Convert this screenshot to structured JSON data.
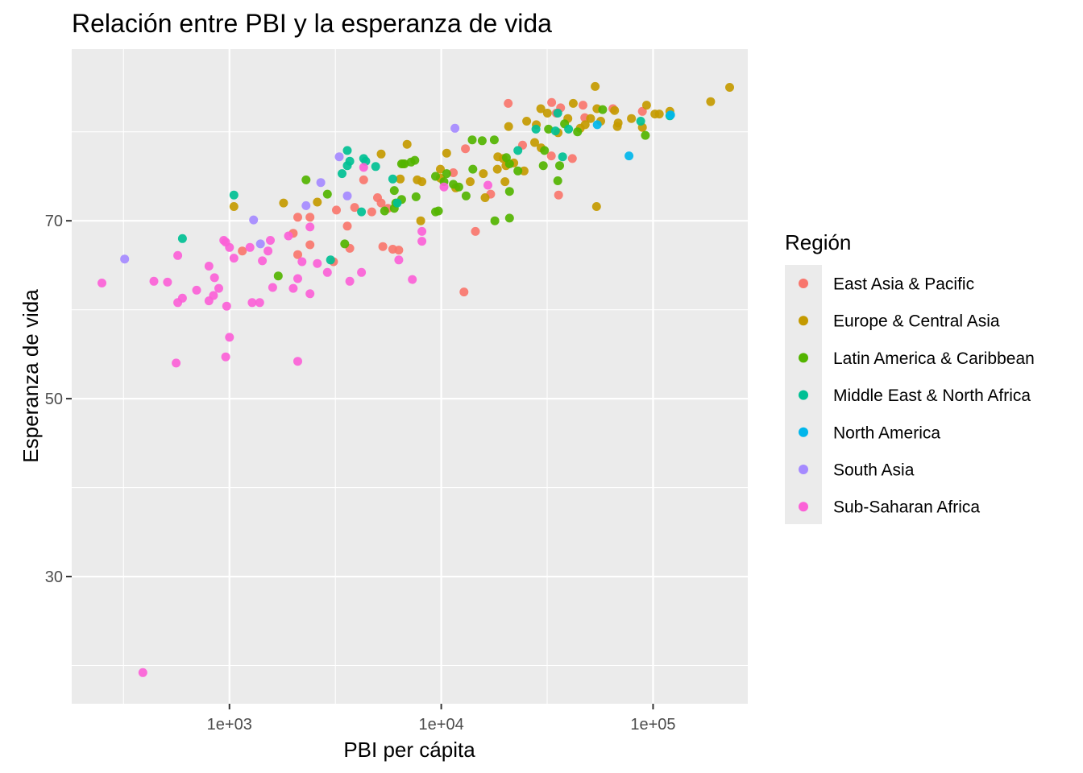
{
  "chart_data": {
    "type": "scatter",
    "title": "Relación entre  PBI y la esperanza de vida",
    "xlabel": "PBI per cápita",
    "ylabel": "Esperanza de vida",
    "x_scale": "log10",
    "xlim": [
      180,
      280000
    ],
    "ylim": [
      15.7,
      89.3
    ],
    "x_ticks": [
      {
        "value": 1000,
        "label": "1e+03"
      },
      {
        "value": 10000,
        "label": "1e+04"
      },
      {
        "value": 100000,
        "label": "1e+05"
      }
    ],
    "y_ticks": [
      {
        "value": 30,
        "label": "30"
      },
      {
        "value": 50,
        "label": "50"
      },
      {
        "value": 70,
        "label": "70"
      }
    ],
    "grid": true,
    "legend": {
      "title": "Región",
      "position": "right"
    },
    "series": [
      {
        "name": "East Asia & Pacific",
        "color": "#F8766D",
        "points": [
          [
            20700,
            83.2
          ],
          [
            33200,
            83.3
          ],
          [
            36600,
            82.7
          ],
          [
            46700,
            83.0
          ],
          [
            47600,
            81.6
          ],
          [
            64600,
            82.6
          ],
          [
            89000,
            82.3
          ],
          [
            34900,
            82.1
          ],
          [
            24200,
            78.5
          ],
          [
            13000,
            78.1
          ],
          [
            33100,
            77.3
          ],
          [
            41600,
            77.0
          ],
          [
            11400,
            75.4
          ],
          [
            17100,
            73.0
          ],
          [
            35800,
            72.9
          ],
          [
            4300,
            74.6
          ],
          [
            5000,
            72.6
          ],
          [
            5200,
            72.0
          ],
          [
            5600,
            71.4
          ],
          [
            4700,
            71.0
          ],
          [
            3900,
            71.5
          ],
          [
            3200,
            71.2
          ],
          [
            2100,
            70.4
          ],
          [
            2400,
            70.4
          ],
          [
            2000,
            68.6
          ],
          [
            3600,
            69.4
          ],
          [
            2100,
            66.2
          ],
          [
            2400,
            67.3
          ],
          [
            3700,
            66.9
          ],
          [
            5300,
            67.1
          ],
          [
            5900,
            66.8
          ],
          [
            6300,
            66.7
          ],
          [
            3100,
            65.4
          ],
          [
            14500,
            68.8
          ],
          [
            12800,
            62.0
          ],
          [
            1150,
            66.6
          ]
        ]
      },
      {
        "name": "Europe & Central Asia",
        "color": "#C49A00",
        "points": [
          [
            53300,
            85.1
          ],
          [
            230000,
            85.0
          ],
          [
            93200,
            83.0
          ],
          [
            187000,
            83.4
          ],
          [
            54300,
            82.6
          ],
          [
            65800,
            82.4
          ],
          [
            120000,
            82.3
          ],
          [
            102000,
            82.0
          ],
          [
            107000,
            82.0
          ],
          [
            79000,
            81.5
          ],
          [
            29500,
            82.6
          ],
          [
            42000,
            83.2
          ],
          [
            31700,
            82.1
          ],
          [
            39600,
            81.5
          ],
          [
            50700,
            81.5
          ],
          [
            56600,
            81.2
          ],
          [
            47800,
            80.8
          ],
          [
            67800,
            80.6
          ],
          [
            68400,
            81.0
          ],
          [
            20800,
            80.6
          ],
          [
            28100,
            80.8
          ],
          [
            25300,
            81.2
          ],
          [
            89000,
            80.5
          ],
          [
            45300,
            80.4
          ],
          [
            35600,
            79.9
          ],
          [
            29600,
            78.2
          ],
          [
            27600,
            78.8
          ],
          [
            18500,
            77.2
          ],
          [
            19600,
            77.0
          ],
          [
            22000,
            76.5
          ],
          [
            20200,
            76.2
          ],
          [
            15800,
            75.3
          ],
          [
            18400,
            75.8
          ],
          [
            24600,
            75.6
          ],
          [
            9900,
            75.8
          ],
          [
            10600,
            77.6
          ],
          [
            6900,
            78.6
          ],
          [
            5200,
            77.5
          ],
          [
            6600,
            76.4
          ],
          [
            6400,
            74.7
          ],
          [
            7700,
            74.6
          ],
          [
            8100,
            74.4
          ],
          [
            9900,
            74.8
          ],
          [
            13700,
            74.4
          ],
          [
            16100,
            72.6
          ],
          [
            20000,
            74.4
          ],
          [
            2600,
            72.1
          ],
          [
            1800,
            72.0
          ],
          [
            1050,
            71.6
          ],
          [
            8000,
            70.0
          ],
          [
            54100,
            71.6
          ],
          [
            11700,
            73.7
          ]
        ]
      },
      {
        "name": "Latin America & Caribbean",
        "color": "#53B400",
        "points": [
          [
            92000,
            79.6
          ],
          [
            57800,
            82.5
          ],
          [
            38200,
            80.9
          ],
          [
            44000,
            80.0
          ],
          [
            32100,
            80.3
          ],
          [
            30700,
            77.9
          ],
          [
            30300,
            76.2
          ],
          [
            36200,
            76.2
          ],
          [
            23000,
            75.6
          ],
          [
            20300,
            77.1
          ],
          [
            21000,
            76.4
          ],
          [
            14000,
            79.1
          ],
          [
            15600,
            79.0
          ],
          [
            17800,
            79.1
          ],
          [
            9400,
            75.0
          ],
          [
            10300,
            74.4
          ],
          [
            11400,
            74.1
          ],
          [
            12100,
            73.8
          ],
          [
            10600,
            75.3
          ],
          [
            14100,
            75.8
          ],
          [
            13100,
            72.8
          ],
          [
            17900,
            70.0
          ],
          [
            21000,
            70.3
          ],
          [
            21000,
            73.3
          ],
          [
            6500,
            76.4
          ],
          [
            6700,
            76.4
          ],
          [
            7200,
            76.6
          ],
          [
            7500,
            76.8
          ],
          [
            5400,
            71.1
          ],
          [
            6000,
            71.4
          ],
          [
            6000,
            73.4
          ],
          [
            6100,
            72.0
          ],
          [
            6500,
            72.4
          ],
          [
            7600,
            72.7
          ],
          [
            9400,
            71.0
          ],
          [
            9700,
            71.1
          ],
          [
            2300,
            74.6
          ],
          [
            2900,
            73.0
          ],
          [
            3500,
            67.4
          ],
          [
            1700,
            63.8
          ],
          [
            35500,
            74.5
          ]
        ]
      },
      {
        "name": "Middle East & North Africa",
        "color": "#00C094",
        "points": [
          [
            120000,
            81.8
          ],
          [
            87400,
            81.2
          ],
          [
            35500,
            82.1
          ],
          [
            39900,
            80.3
          ],
          [
            28000,
            80.3
          ],
          [
            34600,
            80.1
          ],
          [
            37400,
            77.2
          ],
          [
            23000,
            77.9
          ],
          [
            3600,
            77.9
          ],
          [
            3700,
            76.7
          ],
          [
            4300,
            77.0
          ],
          [
            4400,
            76.7
          ],
          [
            4900,
            76.1
          ],
          [
            3600,
            76.2
          ],
          [
            3400,
            75.3
          ],
          [
            5900,
            74.7
          ],
          [
            6200,
            72.0
          ],
          [
            4200,
            71.0
          ],
          [
            1050,
            72.9
          ],
          [
            600,
            68.0
          ],
          [
            3000,
            65.6
          ]
        ]
      },
      {
        "name": "North America",
        "color": "#00B6EB",
        "points": [
          [
            121000,
            81.9
          ],
          [
            54500,
            80.8
          ],
          [
            77000,
            77.3
          ]
        ]
      },
      {
        "name": "South Asia",
        "color": "#A58AFF",
        "points": [
          [
            11600,
            80.4
          ],
          [
            3300,
            77.2
          ],
          [
            2700,
            74.3
          ],
          [
            2300,
            71.7
          ],
          [
            3600,
            72.8
          ],
          [
            1400,
            67.4
          ],
          [
            1300,
            70.1
          ],
          [
            320,
            65.7
          ]
        ]
      },
      {
        "name": "Sub-Saharan Africa",
        "color": "#FB61D7",
        "points": [
          [
            250,
            63.0
          ],
          [
            390,
            19.2
          ],
          [
            440,
            63.2
          ],
          [
            510,
            63.1
          ],
          [
            570,
            60.8
          ],
          [
            570,
            66.1
          ],
          [
            600,
            61.3
          ],
          [
            700,
            62.2
          ],
          [
            800,
            64.9
          ],
          [
            800,
            61.0
          ],
          [
            840,
            61.6
          ],
          [
            850,
            63.6
          ],
          [
            890,
            62.4
          ],
          [
            940,
            67.8
          ],
          [
            960,
            67.6
          ],
          [
            970,
            60.4
          ],
          [
            1000,
            67.0
          ],
          [
            1050,
            65.8
          ],
          [
            1250,
            67.0
          ],
          [
            1280,
            60.8
          ],
          [
            1430,
            65.5
          ],
          [
            1390,
            60.8
          ],
          [
            1520,
            66.6
          ],
          [
            1560,
            67.8
          ],
          [
            1600,
            62.5
          ],
          [
            1900,
            68.3
          ],
          [
            2000,
            62.4
          ],
          [
            2100,
            63.5
          ],
          [
            2200,
            65.4
          ],
          [
            2400,
            61.8
          ],
          [
            2400,
            69.3
          ],
          [
            2600,
            65.2
          ],
          [
            2900,
            64.2
          ],
          [
            3700,
            63.2
          ],
          [
            4200,
            64.2
          ],
          [
            4300,
            76.0
          ],
          [
            6300,
            65.6
          ],
          [
            7300,
            63.4
          ],
          [
            8100,
            67.7
          ],
          [
            8100,
            68.8
          ],
          [
            10300,
            73.8
          ],
          [
            16600,
            74.0
          ],
          [
            960,
            54.7
          ],
          [
            1000,
            56.9
          ],
          [
            2100,
            54.2
          ],
          [
            560,
            54.0
          ]
        ]
      }
    ]
  }
}
